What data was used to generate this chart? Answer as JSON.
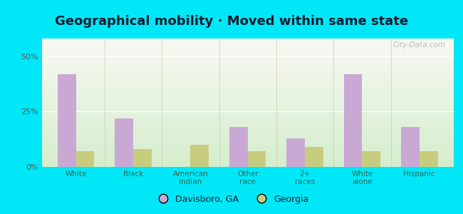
{
  "title": "Geographical mobility · Moved within same state",
  "categories": [
    "White",
    "Black",
    "American\nIndian",
    "Other\nrace",
    "2+\nraces",
    "White\nalone",
    "Hispanic"
  ],
  "davisboro_values": [
    42,
    22,
    0,
    18,
    13,
    42,
    18
  ],
  "georgia_values": [
    7,
    8,
    10,
    7,
    9,
    7,
    7
  ],
  "davisboro_color": "#c9a8d4",
  "georgia_color": "#c8cc7e",
  "background_outer": "#00e8f8",
  "background_inner_top": "#f8f8f2",
  "background_inner_bottom": "#d4edcc",
  "yticks": [
    0,
    25,
    50
  ],
  "ylim": [
    0,
    58
  ],
  "legend_davisboro": "Davisboro, GA",
  "legend_georgia": "Georgia",
  "title_fontsize": 13,
  "bar_width": 0.32
}
